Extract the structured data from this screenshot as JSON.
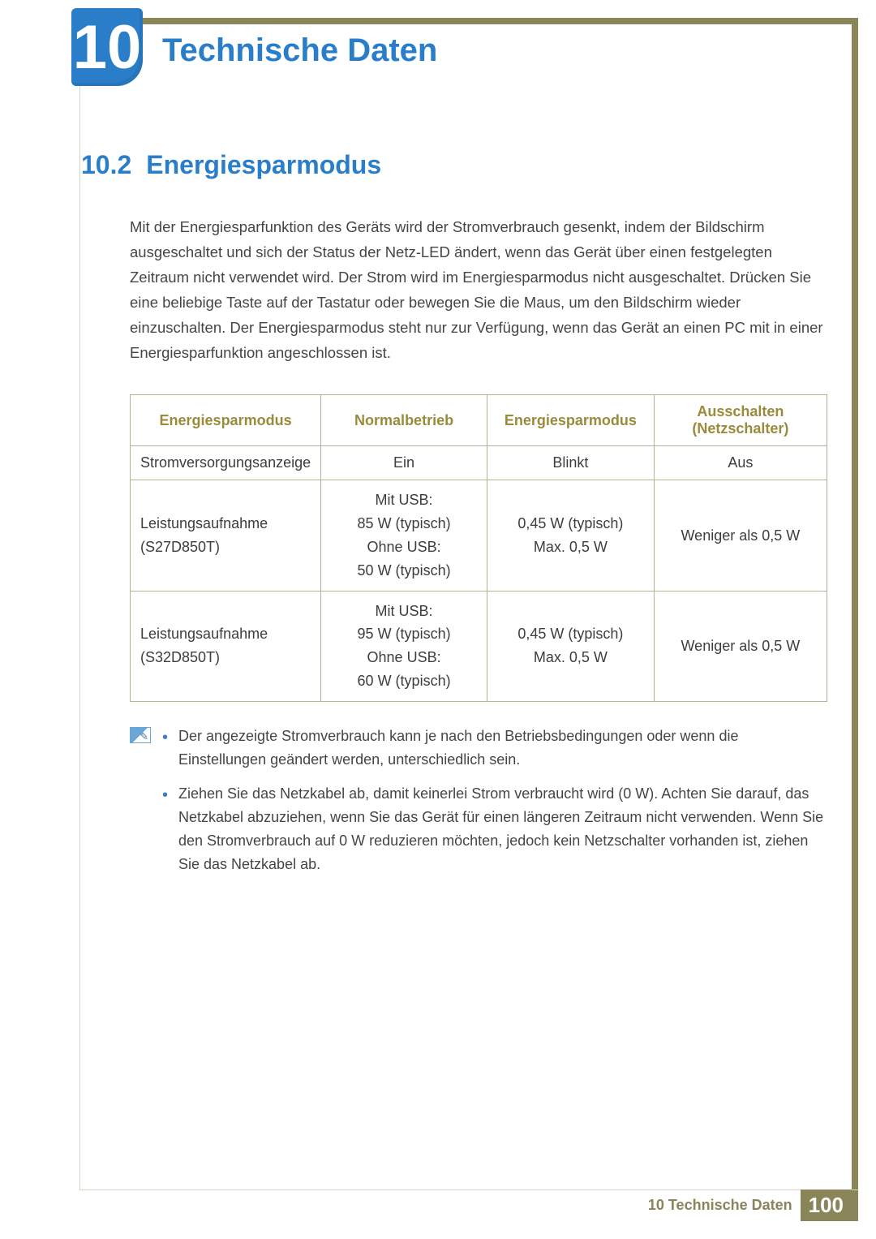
{
  "colors": {
    "accent_blue": "#2a7ec9",
    "olive": "#8a8459",
    "olive_light": "#b6b193",
    "header_gold": "#9a8b3c",
    "text": "#454545"
  },
  "header": {
    "chapter_number": "10",
    "chapter_title": "Technische Daten"
  },
  "section": {
    "number": "10.2",
    "title": "Energiesparmodus",
    "body": "Mit der Energiesparfunktion des Geräts wird der Stromverbrauch gesenkt, indem der Bildschirm ausgeschaltet und sich der Status der Netz-LED ändert, wenn das Gerät über einen festgelegten Zeitraum nicht verwendet wird. Der Strom wird im Energiesparmodus nicht ausgeschaltet. Drücken Sie eine beliebige Taste auf der Tastatur oder bewegen Sie die Maus, um den Bildschirm wieder einzuschalten. Der Energiesparmodus steht nur zur Verfügung, wenn das Gerät an einen PC mit in einer Energiesparfunktion angeschlossen ist."
  },
  "table": {
    "columns": [
      "Energiesparmodus",
      "Normalbetrieb",
      "Energiesparmodus",
      "Ausschalten (Netzschalter)"
    ],
    "col_widths_pct": [
      27,
      24,
      24,
      25
    ],
    "rows": [
      {
        "label": "Stromversorgungsanzeige",
        "c1": "Ein",
        "c2": "Blinkt",
        "c3": "Aus"
      },
      {
        "label": "Leistungsaufnahme (S27D850T)",
        "c1": "Mit USB:\n85 W (typisch)\nOhne USB:\n50 W (typisch)",
        "c2": "0,45 W (typisch)\nMax. 0,5 W",
        "c3": "Weniger als 0,5 W"
      },
      {
        "label": "Leistungsaufnahme (S32D850T)",
        "c1": "Mit USB:\n95 W (typisch)\nOhne USB:\n60 W (typisch)",
        "c2": "0,45 W (typisch)\nMax. 0,5 W",
        "c3": "Weniger als 0,5 W"
      }
    ]
  },
  "notes": [
    "Der angezeigte Stromverbrauch kann je nach den Betriebsbedingungen oder wenn die Einstellungen geändert werden, unterschiedlich sein.",
    "Ziehen Sie das Netzkabel ab, damit keinerlei Strom verbraucht wird (0 W). Achten Sie darauf, das Netzkabel abzuziehen, wenn Sie das Gerät für einen längeren Zeitraum nicht verwenden. Wenn Sie den Stromverbrauch auf 0 W reduzieren möchten, jedoch kein Netzschalter vorhanden ist, ziehen Sie das Netzkabel ab."
  ],
  "footer": {
    "label": "10 Technische Daten",
    "page": "100"
  }
}
